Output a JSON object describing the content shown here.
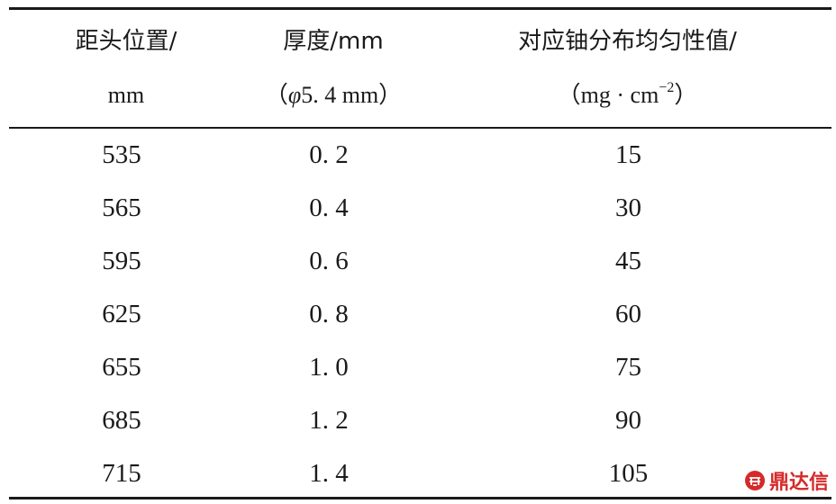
{
  "table": {
    "header": {
      "col1": {
        "line1": "距头位置/",
        "line2": "mm"
      },
      "col2": {
        "line1": "厚度/mm",
        "line2_prefix": "（",
        "line2_symbol": "φ",
        "line2_value": "5. 4 mm",
        "line2_suffix": "）"
      },
      "col3": {
        "line1": "对应铀分布均匀性值/",
        "line2_prefix": "（mg · cm",
        "line2_sup": "−2",
        "line2_suffix": "）"
      }
    },
    "rows": [
      {
        "position": "535",
        "thickness": "0. 2",
        "uniformity": "15"
      },
      {
        "position": "565",
        "thickness": "0. 4",
        "uniformity": "30"
      },
      {
        "position": "595",
        "thickness": "0. 6",
        "uniformity": "45"
      },
      {
        "position": "625",
        "thickness": "0. 8",
        "uniformity": "60"
      },
      {
        "position": "655",
        "thickness": "1. 0",
        "uniformity": "75"
      },
      {
        "position": "685",
        "thickness": "1. 2",
        "uniformity": "90"
      },
      {
        "position": "715",
        "thickness": "1. 4",
        "uniformity": "105"
      }
    ]
  },
  "watermark": {
    "text": "鼎达信",
    "icon": "dingdaxin-logo-icon",
    "color": "#d62a2a"
  }
}
